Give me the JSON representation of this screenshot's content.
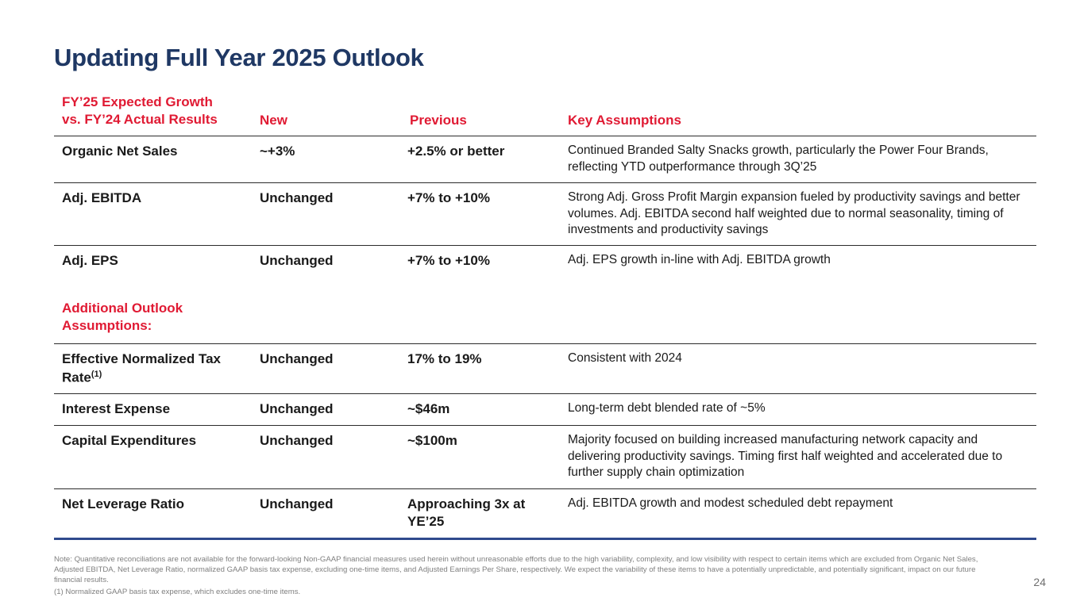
{
  "slide": {
    "title": "Updating Full Year 2025 Outlook",
    "page_number": "24"
  },
  "colors": {
    "navy": "#1f3864",
    "red": "#e01a33"
  },
  "table": {
    "headers": {
      "metric": "FY’25 Expected Growth\nvs. FY’24 Actual Results",
      "new": "New",
      "previous": "Previous",
      "assumptions": "Key Assumptions"
    },
    "rows": [
      {
        "metric": "Organic Net Sales",
        "new": "~+3%",
        "previous": "+2.5% or better",
        "assumptions": "Continued Branded Salty Snacks growth, particularly the Power Four Brands, reflecting YTD outperformance through 3Q’25"
      },
      {
        "metric": "Adj. EBITDA",
        "new": "Unchanged",
        "previous": "+7% to +10%",
        "assumptions": "Strong Adj. Gross Profit Margin expansion fueled by productivity savings and better volumes. Adj. EBITDA second half weighted due to normal seasonality, timing of investments and productivity savings"
      },
      {
        "metric": "Adj. EPS",
        "new": "Unchanged",
        "previous": "+7% to +10%",
        "assumptions": "Adj. EPS growth in-line with Adj. EBITDA growth"
      }
    ],
    "section_header": "Additional Outlook Assumptions:",
    "additional_rows": [
      {
        "metric": "Effective Normalized Tax Rate",
        "metric_sup": "(1)",
        "new": "Unchanged",
        "previous": "17% to 19%",
        "assumptions": "Consistent with 2024"
      },
      {
        "metric": "Interest Expense",
        "new": "Unchanged",
        "previous": "~$46m",
        "assumptions": "Long-term debt blended rate of ~5%"
      },
      {
        "metric": "Capital Expenditures",
        "new": "Unchanged",
        "previous": "~$100m",
        "assumptions": "Majority focused on building increased manufacturing network capacity and delivering productivity savings. Timing first half weighted and accelerated due to further supply chain optimization"
      },
      {
        "metric": "Net Leverage Ratio",
        "new": "Unchanged",
        "previous": "Approaching 3x at YE’25",
        "assumptions": "Adj. EBITDA growth and modest scheduled debt repayment"
      }
    ]
  },
  "footnotes": {
    "note": "Note: Quantitative reconciliations are not available for the forward-looking Non-GAAP financial measures used herein without unreasonable efforts due to the high variability, complexity, and low visibility with respect to certain items which are excluded from Organic Net Sales, Adjusted EBITDA, Net Leverage Ratio, normalized GAAP basis tax expense, excluding one-time items, and Adjusted Earnings Per Share, respectively. We expect the variability of these items to have a potentially unpredictable, and potentially significant, impact on our future financial results.",
    "footnote1": "(1) Normalized GAAP basis tax expense, which excludes one-time items."
  }
}
